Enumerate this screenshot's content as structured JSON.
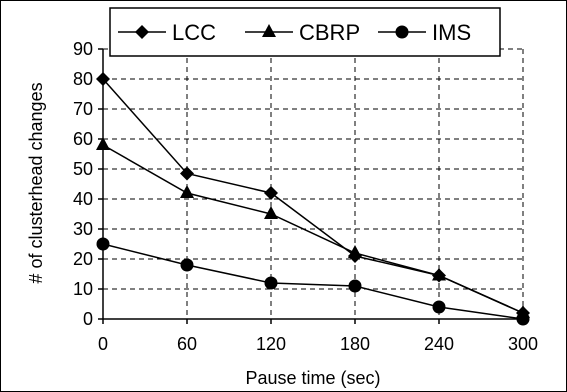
{
  "chart_data": {
    "type": "line",
    "title": "",
    "xlabel": "Pause time (sec)",
    "ylabel": "# of clusterhead changes",
    "x": [
      0,
      60,
      120,
      180,
      240,
      300
    ],
    "xlim": [
      0,
      300
    ],
    "ylim": [
      0,
      90
    ],
    "x_ticks": [
      "0",
      "60",
      "120",
      "180",
      "240",
      "300"
    ],
    "y_ticks": [
      "0",
      "10",
      "20",
      "30",
      "40",
      "50",
      "60",
      "70",
      "80",
      "90"
    ],
    "grid": true,
    "legend_position": "top",
    "series": [
      {
        "name": "LCC",
        "marker": "diamond",
        "values": [
          80,
          48.5,
          42,
          21,
          14.5,
          2
        ]
      },
      {
        "name": "CBRP",
        "marker": "triangle",
        "values": [
          58,
          42,
          35,
          22,
          14.5,
          2
        ]
      },
      {
        "name": "IMS",
        "marker": "circle",
        "values": [
          25,
          18,
          12,
          11,
          4,
          0
        ]
      }
    ]
  }
}
